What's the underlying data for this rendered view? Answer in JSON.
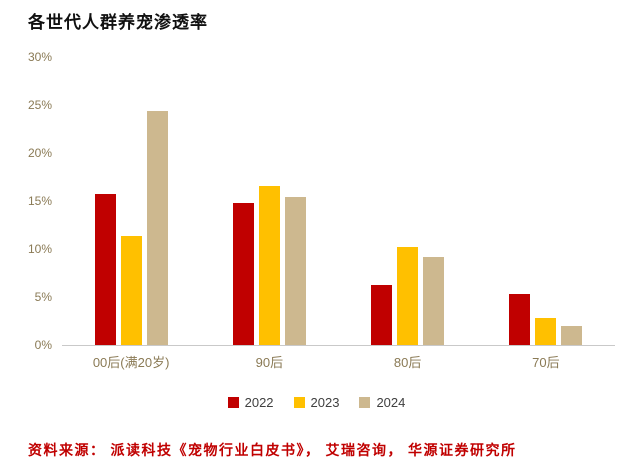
{
  "page": {
    "title": "各世代人群养宠渗透率",
    "source": "资料来源： 派读科技《宠物行业白皮书》， 艾瑞咨询， 华源证券研究所"
  },
  "chart_data": {
    "type": "bar",
    "title": "各世代人群养宠渗透率",
    "categories": [
      "00后(满20岁)",
      "90后",
      "80后",
      "70后"
    ],
    "series": [
      {
        "name": "2022",
        "color": "#c00000",
        "values": [
          15.7,
          14.8,
          6.3,
          5.3
        ]
      },
      {
        "name": "2023",
        "color": "#ffc000",
        "values": [
          11.4,
          16.6,
          10.2,
          2.8
        ]
      },
      {
        "name": "2024",
        "color": "#cdb88f",
        "values": [
          24.4,
          15.4,
          9.2,
          2.0
        ]
      }
    ],
    "xlabel": "",
    "ylabel": "",
    "ylim": [
      0,
      30
    ],
    "ytick_step": 5,
    "ytick_labels": [
      "0%",
      "5%",
      "10%",
      "15%",
      "20%",
      "25%",
      "30%"
    ],
    "grid": false,
    "legend_position": "bottom"
  }
}
